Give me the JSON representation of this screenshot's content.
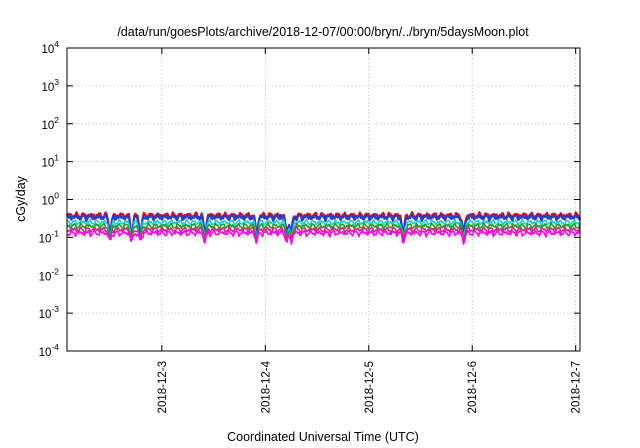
{
  "chart_data": {
    "type": "line",
    "title": "/data/run/goesPlots/archive/2018-12-07/00:00/bryn/../bryn/5daysMoon.plot",
    "xlabel": "Coordinated Universal Time (UTC)",
    "ylabel": "cGy/day",
    "yscale": "log",
    "ylim": [
      0.0001,
      10000
    ],
    "xlim": [
      "2018-12-02 02:00",
      "2018-12-07 01:00"
    ],
    "y_ticks": [
      {
        "value": 0.0001,
        "base": "10",
        "exp": "-4"
      },
      {
        "value": 0.001,
        "base": "10",
        "exp": "-3"
      },
      {
        "value": 0.01,
        "base": "10",
        "exp": "-2"
      },
      {
        "value": 0.1,
        "base": "10",
        "exp": "-1"
      },
      {
        "value": 1,
        "base": "10",
        "exp": "0"
      },
      {
        "value": 10,
        "base": "10",
        "exp": "1"
      },
      {
        "value": 100,
        "base": "10",
        "exp": "2"
      },
      {
        "value": 1000,
        "base": "10",
        "exp": "3"
      },
      {
        "value": 10000,
        "base": "10",
        "exp": "4"
      }
    ],
    "x_ticks": [
      "2018-12-3",
      "2018-12-4",
      "2018-12-5",
      "2018-12-6",
      "2018-12-7"
    ],
    "x_tick_values": [
      "2018-12-03 00:00",
      "2018-12-04 00:00",
      "2018-12-05 00:00",
      "2018-12-06 00:00",
      "2018-12-07 00:00"
    ],
    "grid": true,
    "series": [
      {
        "color": "#e8000b",
        "base": 0.38,
        "dip_depth": 0.8
      },
      {
        "color": "#1f3fd6",
        "base": 0.34,
        "dip_depth": 0.75
      },
      {
        "color": "#1fd0d0",
        "base": 0.25,
        "dip_depth": 0.7
      },
      {
        "color": "#20a020",
        "base": 0.2,
        "dip_depth": 0.6
      },
      {
        "color": "#e0208a",
        "base": 0.16,
        "dip_depth": 0.5
      },
      {
        "color": "#ff00ff",
        "base": 0.13,
        "dip_depth": 0.45
      }
    ],
    "dips": [
      "2018-12-02 12:00",
      "2018-12-02 17:00",
      "2018-12-02 19:00",
      "2018-12-03 10:00",
      "2018-12-03 22:00",
      "2018-12-04 05:00",
      "2018-12-04 06:00",
      "2018-12-05 08:00",
      "2018-12-05 22:00"
    ]
  }
}
